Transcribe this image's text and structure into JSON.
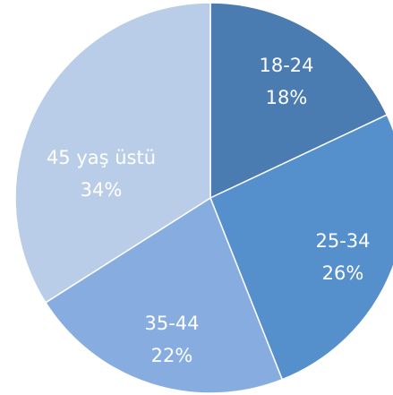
{
  "chart_data": {
    "type": "pie",
    "categories": [
      "18-24",
      "25-34",
      "35-44",
      "45 yaş üstü"
    ],
    "values": [
      18,
      26,
      22,
      34
    ],
    "value_labels": [
      "18%",
      "26%",
      "22%",
      "34%"
    ],
    "colors": [
      "#4a7bb1",
      "#5590cd",
      "#87ade0",
      "#b9cde9"
    ]
  }
}
